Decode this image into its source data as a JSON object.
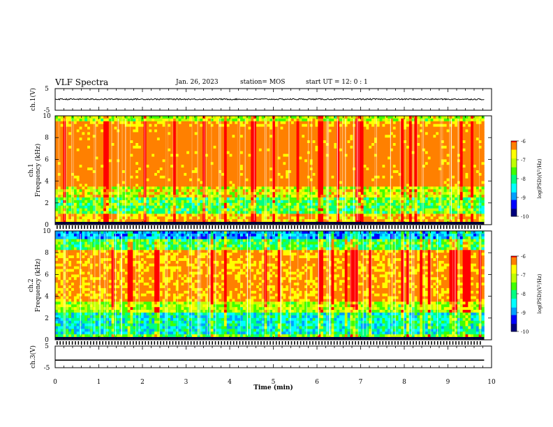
{
  "header": {
    "title": "VLF Spectra",
    "date": "Jan. 26, 2023",
    "station": "station= MOS",
    "start": "start  UT =   12: 0  : 1"
  },
  "chart_data": [
    {
      "type": "line",
      "panel": "ch1-waveform",
      "ylabel": "ch.1(V)",
      "ylim": [
        -5,
        5
      ],
      "yticks": [
        "5",
        "-5"
      ],
      "xlim": [
        0,
        10
      ],
      "series": [
        {
          "values_description_free": true,
          "level": 0.1,
          "noise": 0.3
        }
      ]
    },
    {
      "type": "heatmap",
      "panel": "ch1-spectrogram",
      "ylabel": "ch.1\nFrequency  (kHz)",
      "ylabel_line1": "ch.1",
      "ylabel_line2": "Frequency  (kHz)",
      "ylim": [
        0,
        10
      ],
      "yticks": [
        "0",
        "2",
        "4",
        "6",
        "8",
        "10"
      ],
      "xlim": [
        0,
        9.83
      ],
      "colorbar": {
        "label": "log(PSD)(V²/Hz)",
        "ticks": [
          "-6",
          "-7",
          "-8",
          "-9",
          "-10"
        ],
        "range": [
          -10,
          -6
        ]
      }
    },
    {
      "type": "heatmap",
      "panel": "ch2-spectrogram",
      "ylabel_line1": "ch.2",
      "ylabel_line2": "Frequency  (kHz)",
      "ylim": [
        0,
        10
      ],
      "yticks": [
        "0",
        "2",
        "4",
        "6",
        "8",
        "10"
      ],
      "xlim": [
        0,
        9.83
      ],
      "colorbar": {
        "label": "log(PSD)(V²/Hz)",
        "ticks": [
          "-6",
          "-7",
          "-8",
          "-9",
          "-10"
        ],
        "range": [
          -10,
          -6
        ]
      }
    },
    {
      "type": "line",
      "panel": "ch3-waveform",
      "ylabel": "ch.3(V)",
      "ylim": [
        -5,
        5
      ],
      "yticks": [
        "5",
        "-5"
      ],
      "xlim": [
        0,
        10
      ],
      "series": [
        {
          "level": -1.5
        }
      ]
    }
  ],
  "xaxis": {
    "label": "Time  (min)",
    "ticks": [
      "0",
      "1",
      "2",
      "3",
      "4",
      "5",
      "6",
      "7",
      "8",
      "9",
      "10"
    ]
  },
  "colors": {
    "cmap": [
      "#00007f",
      "#0000ff",
      "#00a0ff",
      "#00ffff",
      "#00ff80",
      "#40ff00",
      "#c0ff00",
      "#ffff00",
      "#ff8000",
      "#ff0000",
      "#ffffff"
    ]
  }
}
